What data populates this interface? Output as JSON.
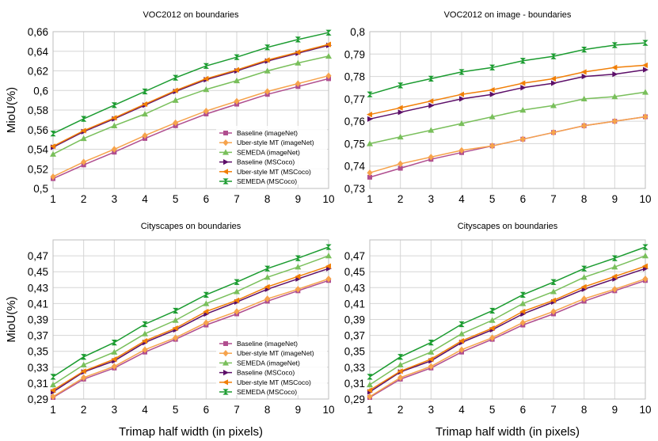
{
  "shared": {
    "x_values": [
      1,
      2,
      3,
      4,
      5,
      6,
      7,
      8,
      9,
      10
    ],
    "xlabel": "Trimap half width (in pixels)",
    "ylabel": "MioU(%)",
    "series_styles": [
      {
        "name": "Baseline (imageNet)",
        "color": "#b04e8f",
        "marker": "square"
      },
      {
        "name": "Uber-style MT (imageNet)",
        "color": "#f6a34c",
        "marker": "diamond"
      },
      {
        "name": "SEMEDA (imageNet)",
        "color": "#79bf5b",
        "marker": "triangle"
      },
      {
        "name": "Baseline (MSCoco)",
        "color": "#5c0e68",
        "marker": "arrow-right"
      },
      {
        "name": "Uber-style MT (MSCoco)",
        "color": "#f17f07",
        "marker": "arrow-left"
      },
      {
        "name": "SEMEDA (MSCoco)",
        "color": "#1a9b2f",
        "marker": "hourglass"
      }
    ]
  },
  "chart_data": [
    {
      "type": "line",
      "title": "VOC2012 on boundaries",
      "xlabel": "",
      "ylabel": "MioU(%)",
      "ylim": [
        0.5,
        0.66
      ],
      "yticks": [
        "0,5",
        "0,52",
        "0,54",
        "0,56",
        "0,58",
        "0,6",
        "0,62",
        "0,64",
        "0,66"
      ],
      "xticks": [
        "1",
        "2",
        "3",
        "4",
        "5",
        "6",
        "7",
        "8",
        "9",
        "10"
      ],
      "legend": "bottom-right",
      "series": [
        {
          "name": "Baseline (imageNet)",
          "values": [
            0.51,
            0.524,
            0.537,
            0.551,
            0.564,
            0.576,
            0.586,
            0.596,
            0.604,
            0.612
          ]
        },
        {
          "name": "Uber-style MT (imageNet)",
          "values": [
            0.512,
            0.527,
            0.54,
            0.554,
            0.567,
            0.579,
            0.589,
            0.599,
            0.607,
            0.615
          ]
        },
        {
          "name": "SEMEDA (imageNet)",
          "values": [
            0.535,
            0.551,
            0.564,
            0.576,
            0.59,
            0.601,
            0.61,
            0.62,
            0.628,
            0.635
          ]
        },
        {
          "name": "Baseline (MSCoco)",
          "values": [
            0.542,
            0.558,
            0.571,
            0.585,
            0.599,
            0.611,
            0.62,
            0.63,
            0.638,
            0.646
          ]
        },
        {
          "name": "Uber-style MT (MSCoco)",
          "values": [
            0.543,
            0.559,
            0.572,
            0.586,
            0.6,
            0.612,
            0.621,
            0.631,
            0.639,
            0.647
          ]
        },
        {
          "name": "SEMEDA (MSCoco)",
          "values": [
            0.556,
            0.571,
            0.585,
            0.599,
            0.613,
            0.625,
            0.634,
            0.644,
            0.652,
            0.659
          ]
        }
      ]
    },
    {
      "type": "line",
      "title": "VOC2012 on image - boundaries",
      "xlabel": "",
      "ylabel": "",
      "ylim": [
        0.73,
        0.8
      ],
      "yticks": [
        "0,73",
        "0,74",
        "0,75",
        "0,76",
        "0,77",
        "0,78",
        "0,79",
        "0,8"
      ],
      "xticks": [
        "1",
        "2",
        "3",
        "4",
        "5",
        "6",
        "7",
        "8",
        "9",
        "10"
      ],
      "legend": "none",
      "series": [
        {
          "name": "Baseline (imageNet)",
          "values": [
            0.735,
            0.739,
            0.743,
            0.746,
            0.749,
            0.752,
            0.755,
            0.758,
            0.76,
            0.762
          ]
        },
        {
          "name": "Uber-style MT (imageNet)",
          "values": [
            0.737,
            0.741,
            0.744,
            0.747,
            0.749,
            0.752,
            0.755,
            0.758,
            0.76,
            0.762
          ]
        },
        {
          "name": "SEMEDA (imageNet)",
          "values": [
            0.75,
            0.753,
            0.756,
            0.759,
            0.762,
            0.765,
            0.767,
            0.77,
            0.771,
            0.773
          ]
        },
        {
          "name": "Baseline (MSCoco)",
          "values": [
            0.761,
            0.764,
            0.767,
            0.77,
            0.772,
            0.775,
            0.777,
            0.78,
            0.781,
            0.783
          ]
        },
        {
          "name": "Uber-style MT (MSCoco)",
          "values": [
            0.763,
            0.766,
            0.769,
            0.772,
            0.774,
            0.777,
            0.779,
            0.782,
            0.784,
            0.785
          ]
        },
        {
          "name": "SEMEDA (MSCoco)",
          "values": [
            0.772,
            0.776,
            0.779,
            0.782,
            0.784,
            0.787,
            0.789,
            0.792,
            0.794,
            0.795
          ]
        }
      ]
    },
    {
      "type": "line",
      "title": "Cityscapes on boundaries",
      "xlabel": "Trimap half width (in pixels)",
      "ylabel": "MioU(%)",
      "ylim": [
        0.29,
        0.49
      ],
      "yticks": [
        "0,29",
        "0,31",
        "0,33",
        "0,35",
        "0,37",
        "0,39",
        "0,41",
        "0,43",
        "0,45",
        "0,47"
      ],
      "xticks": [
        "1",
        "2",
        "3",
        "4",
        "5",
        "6",
        "7",
        "8",
        "9",
        "10"
      ],
      "legend": "bottom-right",
      "series": [
        {
          "name": "Baseline (imageNet)",
          "values": [
            0.292,
            0.315,
            0.329,
            0.349,
            0.365,
            0.383,
            0.397,
            0.413,
            0.426,
            0.439
          ]
        },
        {
          "name": "Uber-style MT (imageNet)",
          "values": [
            0.293,
            0.317,
            0.331,
            0.352,
            0.367,
            0.386,
            0.4,
            0.416,
            0.428,
            0.441
          ]
        },
        {
          "name": "SEMEDA (imageNet)",
          "values": [
            0.308,
            0.333,
            0.349,
            0.372,
            0.389,
            0.41,
            0.425,
            0.443,
            0.456,
            0.47
          ]
        },
        {
          "name": "Baseline (MSCoco)",
          "values": [
            0.299,
            0.324,
            0.338,
            0.361,
            0.377,
            0.397,
            0.412,
            0.428,
            0.441,
            0.454
          ]
        },
        {
          "name": "Uber-style MT (MSCoco)",
          "values": [
            0.301,
            0.325,
            0.34,
            0.363,
            0.379,
            0.4,
            0.414,
            0.431,
            0.444,
            0.457
          ]
        },
        {
          "name": "SEMEDA (MSCoco)",
          "values": [
            0.318,
            0.343,
            0.361,
            0.384,
            0.401,
            0.421,
            0.437,
            0.454,
            0.467,
            0.481
          ]
        }
      ]
    },
    {
      "type": "line",
      "title": "Cityscapes on boundaries",
      "xlabel": "Trimap half width (in pixels)",
      "ylabel": "",
      "ylim": [
        0.29,
        0.49
      ],
      "yticks": [
        "0,29",
        "0,31",
        "0,33",
        "0,35",
        "0,37",
        "0,39",
        "0,41",
        "0,43",
        "0,45",
        "0,47"
      ],
      "xticks": [
        "1",
        "2",
        "3",
        "4",
        "5",
        "6",
        "7",
        "8",
        "9",
        "10"
      ],
      "legend": "none",
      "series": [
        {
          "name": "Baseline (imageNet)",
          "values": [
            0.292,
            0.315,
            0.329,
            0.349,
            0.365,
            0.383,
            0.397,
            0.413,
            0.426,
            0.439
          ]
        },
        {
          "name": "Uber-style MT (imageNet)",
          "values": [
            0.293,
            0.317,
            0.331,
            0.352,
            0.367,
            0.386,
            0.4,
            0.416,
            0.428,
            0.441
          ]
        },
        {
          "name": "SEMEDA (imageNet)",
          "values": [
            0.308,
            0.333,
            0.349,
            0.372,
            0.389,
            0.41,
            0.425,
            0.443,
            0.456,
            0.47
          ]
        },
        {
          "name": "Baseline (MSCoco)",
          "values": [
            0.299,
            0.324,
            0.338,
            0.361,
            0.377,
            0.397,
            0.412,
            0.428,
            0.441,
            0.454
          ]
        },
        {
          "name": "Uber-style MT (MSCoco)",
          "values": [
            0.301,
            0.325,
            0.34,
            0.363,
            0.379,
            0.4,
            0.414,
            0.431,
            0.444,
            0.457
          ]
        },
        {
          "name": "SEMEDA (MSCoco)",
          "values": [
            0.318,
            0.343,
            0.361,
            0.384,
            0.401,
            0.421,
            0.437,
            0.454,
            0.467,
            0.481
          ]
        }
      ]
    }
  ]
}
